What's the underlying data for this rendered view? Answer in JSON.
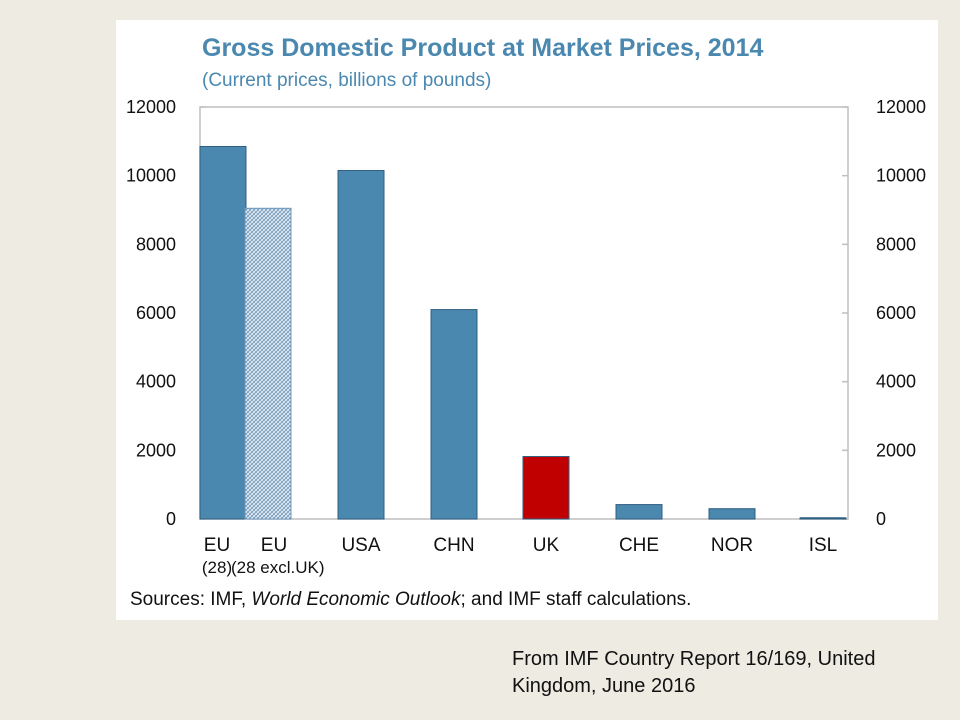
{
  "chart_data": {
    "type": "bar",
    "title": "Gross Domestic Product at Market Prices, 2014",
    "subtitle": "(Current prices, billions of pounds)",
    "categories": [
      "EU (28)",
      "EU (28 excl.UK)",
      "USA",
      "CHN",
      "UK",
      "CHE",
      "NOR",
      "ISL"
    ],
    "category_labels": [
      [
        "EU",
        "(28)"
      ],
      [
        "EU",
        "(28 excl.UK)"
      ],
      [
        "USA"
      ],
      [
        "CHN"
      ],
      [
        "UK"
      ],
      [
        "CHE"
      ],
      [
        "NOR"
      ],
      [
        "ISL"
      ]
    ],
    "values": [
      10850,
      9050,
      10150,
      6100,
      1820,
      420,
      300,
      10
    ],
    "bar_colors": [
      "#4a88b0",
      "hatched",
      "#4a88b0",
      "#4a88b0",
      "#c00000",
      "#4a88b0",
      "#4a88b0",
      "#4a88b0"
    ],
    "ylim": [
      0,
      12000
    ],
    "yticks": [
      0,
      2000,
      4000,
      6000,
      8000,
      10000,
      12000
    ],
    "y_axis_right": true,
    "grid": false,
    "legend": "none",
    "source_prefix": "Sources: IMF, ",
    "source_italic": "World Economic Outlook",
    "source_suffix": "; and IMF staff calculations.",
    "colors": {
      "title": "#4a88b0",
      "bar": "#4a88b0",
      "highlight": "#c00000",
      "frame": "#bfbfbf"
    }
  },
  "footer_note": "From IMF Country Report 16/169, United Kingdom, June 2016"
}
